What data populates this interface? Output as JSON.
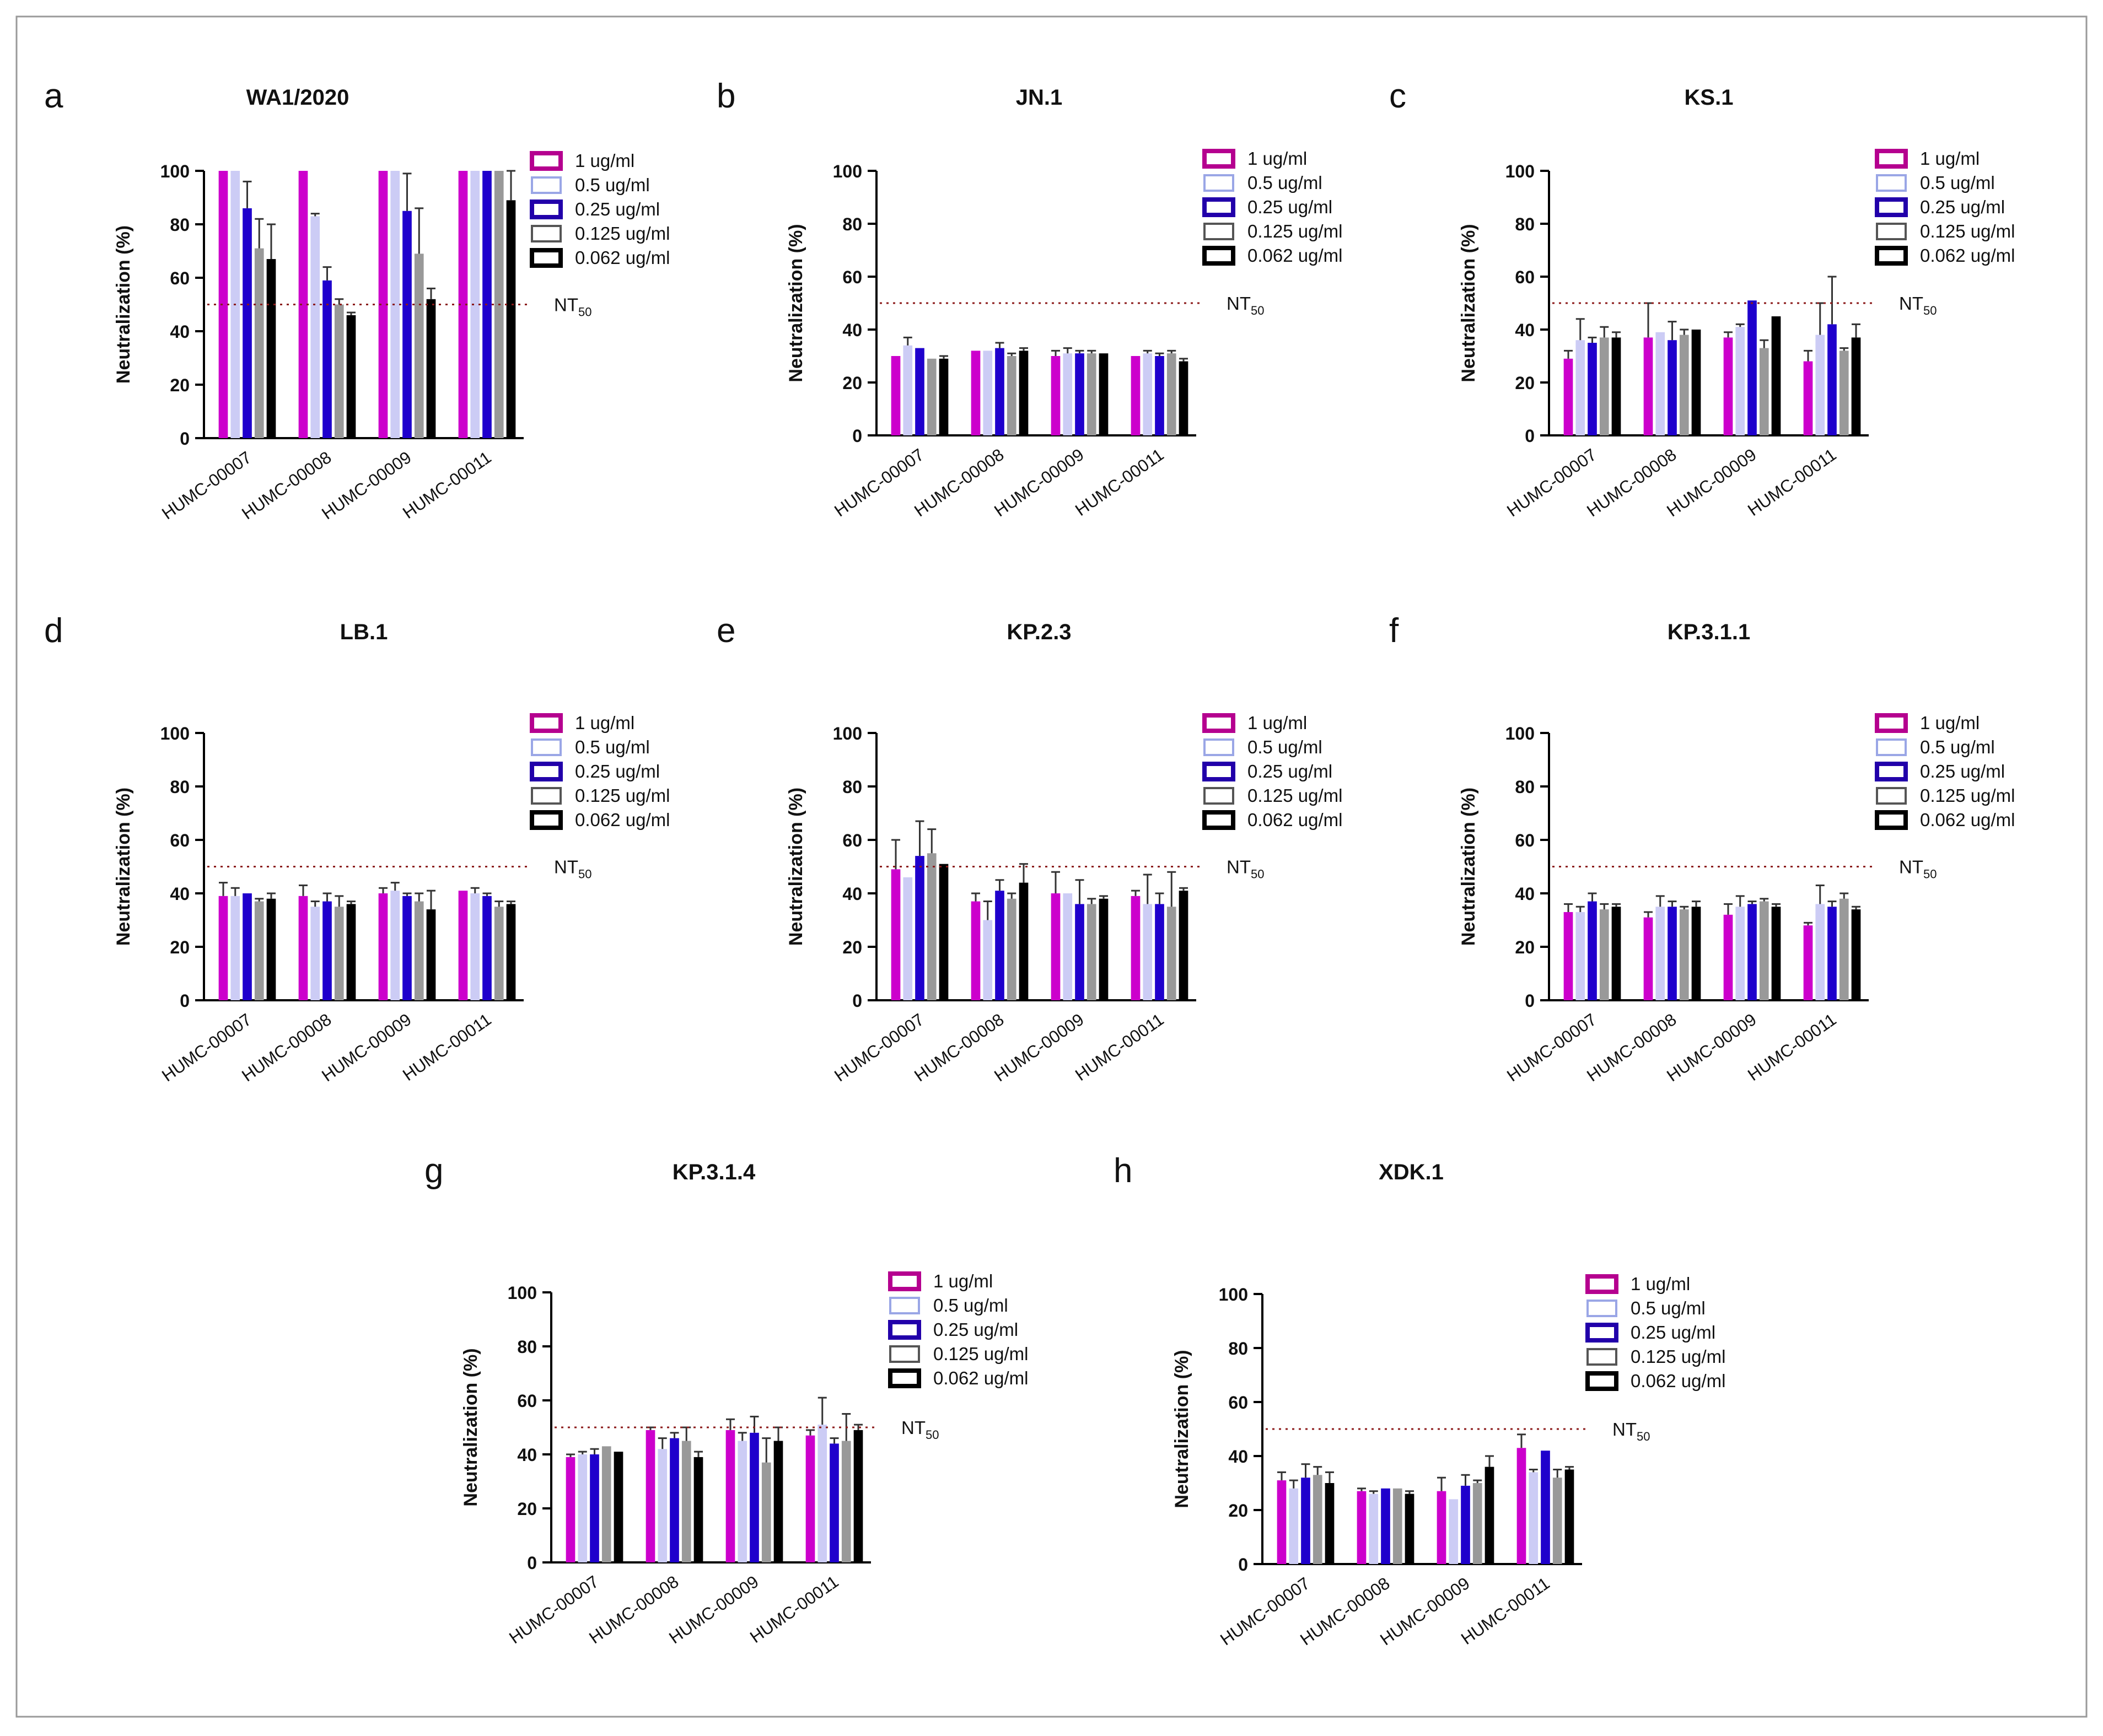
{
  "figure": {
    "series_labels": [
      "1 ug/ml",
      "0.5 ug/ml",
      "0.25 ug/ml",
      "0.125 ug/ml",
      "0.062 ug/ml"
    ],
    "series_fill": [
      "#cc00cc",
      "#ccccf5",
      "#1f00cc",
      "#999999",
      "#000000"
    ],
    "series_legend_stroke": [
      "#b5008f",
      "#9aa6e6",
      "#2200aa",
      "#555555",
      "#000000"
    ],
    "ylabel": "Neutralization (%)",
    "threshold_label": "NT",
    "threshold_subscript": "50",
    "threshold_color": "#8b1a1a"
  },
  "chart_data": [
    {
      "panel": "a",
      "type": "bar",
      "title": "WA1/2020",
      "categories": [
        "HUMC-00007",
        "HUMC-00008",
        "HUMC-00009",
        "HUMC-00011"
      ],
      "ylabel": "Neutralization (%)",
      "ylim": [
        0,
        100
      ],
      "yticks": [
        0,
        20,
        40,
        60,
        80,
        100
      ],
      "threshold": 50,
      "series": [
        {
          "name": "1 ug/ml",
          "values": [
            100,
            100,
            100,
            100
          ],
          "errors": [
            0,
            0,
            0,
            0
          ]
        },
        {
          "name": "0.5 ug/ml",
          "values": [
            100,
            83,
            100,
            100
          ],
          "errors": [
            0,
            1,
            0,
            0
          ]
        },
        {
          "name": "0.25 ug/ml",
          "values": [
            86,
            59,
            85,
            100
          ],
          "errors": [
            10,
            5,
            14,
            0
          ]
        },
        {
          "name": "0.125 ug/ml",
          "values": [
            71,
            50,
            69,
            100
          ],
          "errors": [
            11,
            2,
            17,
            0
          ]
        },
        {
          "name": "0.062 ug/ml",
          "values": [
            67,
            46,
            52,
            89
          ],
          "errors": [
            13,
            1,
            4,
            11
          ]
        }
      ]
    },
    {
      "panel": "b",
      "type": "bar",
      "title": "JN.1",
      "categories": [
        "HUMC-00007",
        "HUMC-00008",
        "HUMC-00009",
        "HUMC-00011"
      ],
      "ylabel": "Neutralization (%)",
      "ylim": [
        0,
        100
      ],
      "yticks": [
        0,
        20,
        40,
        60,
        80,
        100
      ],
      "threshold": 50,
      "series": [
        {
          "name": "1 ug/ml",
          "values": [
            30,
            32,
            30,
            30
          ],
          "errors": [
            0,
            0,
            2,
            0
          ]
        },
        {
          "name": "0.5 ug/ml",
          "values": [
            34,
            32,
            31,
            31
          ],
          "errors": [
            3,
            0,
            2,
            1
          ]
        },
        {
          "name": "0.25 ug/ml",
          "values": [
            33,
            33,
            31,
            30
          ],
          "errors": [
            0,
            2,
            1,
            1
          ]
        },
        {
          "name": "0.125 ug/ml",
          "values": [
            29,
            30,
            31,
            31
          ],
          "errors": [
            0,
            1,
            1,
            1
          ]
        },
        {
          "name": "0.062 ug/ml",
          "values": [
            29,
            32,
            31,
            28
          ],
          "errors": [
            1,
            1,
            0,
            1
          ]
        }
      ]
    },
    {
      "panel": "c",
      "type": "bar",
      "title": "KS.1",
      "categories": [
        "HUMC-00007",
        "HUMC-00008",
        "HUMC-00009",
        "HUMC-00011"
      ],
      "ylabel": "Neutralization (%)",
      "ylim": [
        0,
        100
      ],
      "yticks": [
        0,
        20,
        40,
        60,
        80,
        100
      ],
      "threshold": 50,
      "series": [
        {
          "name": "1 ug/ml",
          "values": [
            29,
            37,
            37,
            28
          ],
          "errors": [
            3,
            13,
            2,
            4
          ]
        },
        {
          "name": "0.5 ug/ml",
          "values": [
            36,
            39,
            41,
            38
          ],
          "errors": [
            8,
            0,
            1,
            12
          ]
        },
        {
          "name": "0.25 ug/ml",
          "values": [
            35,
            36,
            51,
            42
          ],
          "errors": [
            2,
            7,
            0,
            18
          ]
        },
        {
          "name": "0.125 ug/ml",
          "values": [
            37,
            38,
            33,
            32
          ],
          "errors": [
            4,
            2,
            3,
            1
          ]
        },
        {
          "name": "0.062 ug/ml",
          "values": [
            37,
            40,
            45,
            37
          ],
          "errors": [
            2,
            0,
            0,
            5
          ]
        }
      ]
    },
    {
      "panel": "d",
      "type": "bar",
      "title": "LB.1",
      "categories": [
        "HUMC-00007",
        "HUMC-00008",
        "HUMC-00009",
        "HUMC-00011"
      ],
      "ylabel": "Neutralization (%)",
      "ylim": [
        0,
        100
      ],
      "yticks": [
        0,
        20,
        40,
        60,
        80,
        100
      ],
      "threshold": 50,
      "series": [
        {
          "name": "1 ug/ml",
          "values": [
            39,
            39,
            40,
            41
          ],
          "errors": [
            5,
            4,
            2,
            0
          ]
        },
        {
          "name": "0.5 ug/ml",
          "values": [
            39,
            35,
            41,
            40
          ],
          "errors": [
            3,
            2,
            3,
            2
          ]
        },
        {
          "name": "0.25 ug/ml",
          "values": [
            40,
            37,
            39,
            39
          ],
          "errors": [
            0,
            3,
            1,
            1
          ]
        },
        {
          "name": "0.125 ug/ml",
          "values": [
            37,
            35,
            37,
            35
          ],
          "errors": [
            1,
            4,
            3,
            2
          ]
        },
        {
          "name": "0.062 ug/ml",
          "values": [
            38,
            36,
            34,
            36
          ],
          "errors": [
            2,
            1,
            7,
            1
          ]
        }
      ]
    },
    {
      "panel": "e",
      "type": "bar",
      "title": "KP.2.3",
      "categories": [
        "HUMC-00007",
        "HUMC-00008",
        "HUMC-00009",
        "HUMC-00011"
      ],
      "ylabel": "Neutralization (%)",
      "ylim": [
        0,
        100
      ],
      "yticks": [
        0,
        20,
        40,
        60,
        80,
        100
      ],
      "threshold": 50,
      "series": [
        {
          "name": "1 ug/ml",
          "values": [
            49,
            37,
            40,
            39
          ],
          "errors": [
            11,
            3,
            8,
            2
          ]
        },
        {
          "name": "0.5 ug/ml",
          "values": [
            46,
            30,
            40,
            36
          ],
          "errors": [
            0,
            7,
            0,
            11
          ]
        },
        {
          "name": "0.25 ug/ml",
          "values": [
            54,
            41,
            36,
            36
          ],
          "errors": [
            13,
            4,
            9,
            4
          ]
        },
        {
          "name": "0.125 ug/ml",
          "values": [
            55,
            38,
            36,
            35
          ],
          "errors": [
            9,
            2,
            2,
            13
          ]
        },
        {
          "name": "0.062 ug/ml",
          "values": [
            51,
            44,
            38,
            41
          ],
          "errors": [
            0,
            7,
            1,
            1
          ]
        }
      ]
    },
    {
      "panel": "f",
      "type": "bar",
      "title": "KP.3.1.1",
      "categories": [
        "HUMC-00007",
        "HUMC-00008",
        "HUMC-00009",
        "HUMC-00011"
      ],
      "ylabel": "Neutralization (%)",
      "ylim": [
        0,
        100
      ],
      "yticks": [
        0,
        20,
        40,
        60,
        80,
        100
      ],
      "threshold": 50,
      "series": [
        {
          "name": "1 ug/ml",
          "values": [
            33,
            31,
            32,
            28
          ],
          "errors": [
            3,
            2,
            4,
            1
          ]
        },
        {
          "name": "0.5 ug/ml",
          "values": [
            33,
            35,
            35,
            36
          ],
          "errors": [
            2,
            4,
            4,
            7
          ]
        },
        {
          "name": "0.25 ug/ml",
          "values": [
            37,
            35,
            36,
            35
          ],
          "errors": [
            3,
            2,
            1,
            2
          ]
        },
        {
          "name": "0.125 ug/ml",
          "values": [
            34,
            34,
            37,
            38
          ],
          "errors": [
            2,
            1,
            1,
            2
          ]
        },
        {
          "name": "0.062 ug/ml",
          "values": [
            35,
            35,
            35,
            34
          ],
          "errors": [
            1,
            2,
            1,
            1
          ]
        }
      ]
    },
    {
      "panel": "g",
      "type": "bar",
      "title": "KP.3.1.4",
      "categories": [
        "HUMC-00007",
        "HUMC-00008",
        "HUMC-00009",
        "HUMC-00011"
      ],
      "ylabel": "Neutralization (%)",
      "ylim": [
        0,
        100
      ],
      "yticks": [
        0,
        20,
        40,
        60,
        80,
        100
      ],
      "threshold": 50,
      "series": [
        {
          "name": "1 ug/ml",
          "values": [
            39,
            49,
            49,
            47
          ],
          "errors": [
            1,
            1,
            4,
            2
          ]
        },
        {
          "name": "0.5 ug/ml",
          "values": [
            40,
            42,
            45,
            51
          ],
          "errors": [
            1,
            4,
            3,
            10
          ]
        },
        {
          "name": "0.25 ug/ml",
          "values": [
            40,
            46,
            48,
            44
          ],
          "errors": [
            2,
            2,
            6,
            2
          ]
        },
        {
          "name": "0.125 ug/ml",
          "values": [
            43,
            45,
            37,
            45
          ],
          "errors": [
            0,
            5,
            9,
            10
          ]
        },
        {
          "name": "0.062 ug/ml",
          "values": [
            41,
            39,
            45,
            49
          ],
          "errors": [
            0,
            2,
            5,
            2
          ]
        }
      ]
    },
    {
      "panel": "h",
      "type": "bar",
      "title": "XDK.1",
      "categories": [
        "HUMC-00007",
        "HUMC-00008",
        "HUMC-00009",
        "HUMC-00011"
      ],
      "ylabel": "Neutralization (%)",
      "ylim": [
        0,
        100
      ],
      "yticks": [
        0,
        20,
        40,
        60,
        80,
        100
      ],
      "threshold": 50,
      "series": [
        {
          "name": "1 ug/ml",
          "values": [
            31,
            27,
            27,
            43
          ],
          "errors": [
            3,
            1,
            5,
            5
          ]
        },
        {
          "name": "0.5 ug/ml",
          "values": [
            28,
            26,
            24,
            34
          ],
          "errors": [
            3,
            1,
            0,
            1
          ]
        },
        {
          "name": "0.25 ug/ml",
          "values": [
            32,
            28,
            29,
            42
          ],
          "errors": [
            5,
            0,
            4,
            0
          ]
        },
        {
          "name": "0.125 ug/ml",
          "values": [
            33,
            28,
            30,
            32
          ],
          "errors": [
            3,
            0,
            1,
            3
          ]
        },
        {
          "name": "0.062 ug/ml",
          "values": [
            30,
            26,
            36,
            35
          ],
          "errors": [
            4,
            1,
            4,
            1
          ]
        }
      ]
    }
  ]
}
